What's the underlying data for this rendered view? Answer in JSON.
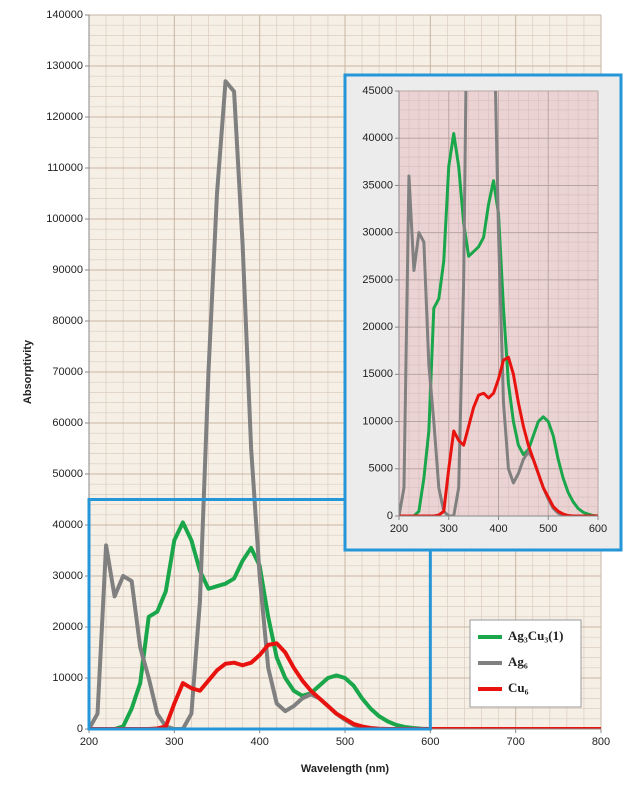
{
  "chart_data": [
    {
      "type": "line",
      "xlabel": "Wavelength (nm)",
      "ylabel": "Absorptivity",
      "x": [
        200,
        210,
        220,
        230,
        240,
        250,
        260,
        270,
        280,
        290,
        300,
        310,
        320,
        330,
        340,
        350,
        360,
        370,
        380,
        390,
        400,
        410,
        420,
        430,
        440,
        450,
        460,
        470,
        480,
        490,
        500,
        510,
        520,
        530,
        540,
        550,
        560,
        570,
        580,
        590,
        600,
        610,
        620,
        630,
        640,
        650,
        660,
        670,
        680,
        690,
        700,
        710,
        720,
        730,
        740,
        750,
        760,
        770,
        780,
        790,
        800
      ],
      "series": [
        {
          "name": "Ag₃Cu₃(1)",
          "color": "#1aa64a",
          "values": [
            0,
            0,
            0,
            0,
            500,
            4000,
            9000,
            22000,
            23000,
            27000,
            37000,
            40500,
            37000,
            31000,
            27500,
            28000,
            28500,
            29500,
            33000,
            35500,
            32000,
            22000,
            14000,
            10000,
            7500,
            6500,
            7000,
            8500,
            10000,
            10500,
            10000,
            8500,
            6000,
            4000,
            2500,
            1500,
            800,
            400,
            200,
            50,
            0,
            0,
            0,
            0,
            0,
            0,
            0,
            0,
            0,
            0,
            0,
            0,
            0,
            0,
            0,
            0,
            0,
            0,
            0,
            0,
            0
          ]
        },
        {
          "name": "Ag₆",
          "color": "#808080",
          "values": [
            0,
            3000,
            36000,
            26000,
            30000,
            29000,
            16000,
            10000,
            3000,
            500,
            0,
            0,
            3000,
            25000,
            70000,
            105000,
            127000,
            125000,
            95000,
            55000,
            30000,
            12000,
            5000,
            3500,
            4500,
            6000,
            6800,
            6000,
            4500,
            3000,
            1800,
            800,
            300,
            100,
            0,
            0,
            0,
            0,
            0,
            0,
            0,
            0,
            0,
            0,
            0,
            0,
            0,
            0,
            0,
            0,
            0,
            0,
            0,
            0,
            0,
            0,
            0,
            0,
            0,
            0,
            0
          ]
        },
        {
          "name": "Cu₆",
          "color": "#e8130f",
          "values": [
            0,
            0,
            0,
            0,
            0,
            0,
            0,
            0,
            100,
            500,
            5000,
            9000,
            8000,
            7500,
            9500,
            11500,
            12800,
            13000,
            12500,
            13000,
            14500,
            16500,
            16800,
            15000,
            12000,
            9500,
            7500,
            6000,
            4500,
            3000,
            2000,
            1000,
            500,
            200,
            50,
            0,
            0,
            0,
            0,
            0,
            0,
            0,
            0,
            0,
            0,
            0,
            0,
            0,
            0,
            0,
            0,
            0,
            0,
            0,
            0,
            0,
            0,
            0,
            0,
            0,
            0
          ]
        }
      ],
      "xlim": [
        200,
        800
      ],
      "xticks": [
        200,
        300,
        400,
        500,
        600,
        700,
        800
      ],
      "ylim": [
        0,
        140000
      ],
      "yticks": [
        0,
        10000,
        20000,
        30000,
        40000,
        50000,
        60000,
        70000,
        80000,
        90000,
        100000,
        110000,
        120000,
        130000,
        140000
      ],
      "grid": true,
      "legend": "lower right"
    },
    {
      "type": "line",
      "xlim": [
        200,
        600
      ],
      "xticks": [
        200,
        300,
        400,
        500,
        600
      ],
      "ylim": [
        0,
        45000
      ],
      "yticks": [
        0,
        5000,
        10000,
        15000,
        20000,
        25000,
        30000,
        35000,
        40000,
        45000
      ],
      "grid": true
    }
  ]
}
